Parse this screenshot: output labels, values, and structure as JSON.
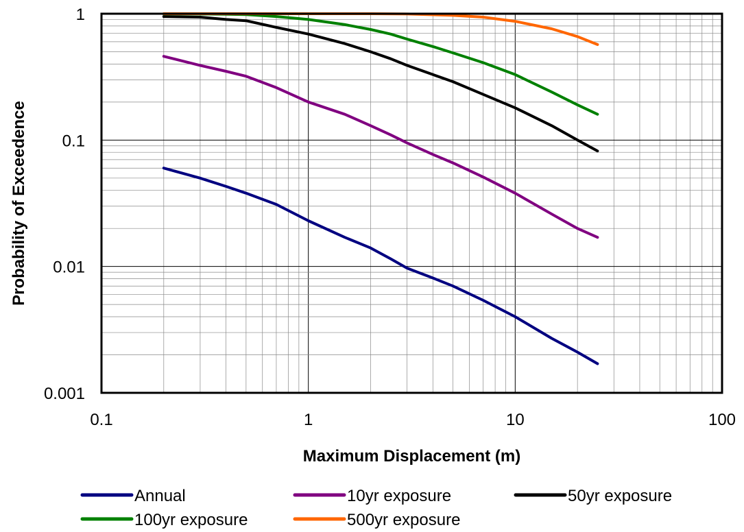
{
  "chart_data": {
    "type": "line",
    "title": "",
    "xlabel": "Maximum Displacement (m)",
    "ylabel": "Probability of Exceedence",
    "xscale": "log",
    "yscale": "log",
    "xlim": [
      0.1,
      100
    ],
    "ylim": [
      0.001,
      1
    ],
    "x_ticks": [
      "0.1",
      "1",
      "10",
      "100"
    ],
    "y_ticks": [
      "1",
      "0.1",
      "0.01",
      "0.001"
    ],
    "grid": true,
    "legend_position": "bottom",
    "series": [
      {
        "name": "Annual",
        "color": "#000080",
        "x": [
          0.2,
          0.3,
          0.4,
          0.5,
          0.7,
          1,
          1.5,
          2,
          2.5,
          3,
          4,
          5,
          7,
          10,
          15,
          20,
          25
        ],
        "y": [
          0.06,
          0.05,
          0.043,
          0.038,
          0.031,
          0.023,
          0.017,
          0.014,
          0.0115,
          0.0097,
          0.0081,
          0.007,
          0.0054,
          0.004,
          0.0027,
          0.0021,
          0.0017
        ]
      },
      {
        "name": "10yr exposure",
        "color": "#800080",
        "x": [
          0.2,
          0.3,
          0.4,
          0.5,
          0.7,
          1,
          1.5,
          2,
          2.5,
          3,
          4,
          5,
          7,
          10,
          15,
          20,
          25
        ],
        "y": [
          0.46,
          0.39,
          0.35,
          0.32,
          0.26,
          0.2,
          0.16,
          0.13,
          0.11,
          0.095,
          0.077,
          0.066,
          0.051,
          0.038,
          0.026,
          0.02,
          0.017
        ]
      },
      {
        "name": "50yr exposure",
        "color": "#000000",
        "x": [
          0.2,
          0.3,
          0.4,
          0.5,
          0.7,
          1,
          1.5,
          2,
          2.5,
          3,
          4,
          5,
          7,
          10,
          15,
          20,
          25
        ],
        "y": [
          0.95,
          0.94,
          0.9,
          0.88,
          0.78,
          0.69,
          0.58,
          0.5,
          0.44,
          0.39,
          0.33,
          0.29,
          0.23,
          0.18,
          0.13,
          0.1,
          0.082
        ]
      },
      {
        "name": "100yr exposure",
        "color": "#008000",
        "x": [
          0.2,
          0.3,
          0.4,
          0.5,
          0.7,
          1,
          1.5,
          2,
          2.5,
          3,
          4,
          5,
          7,
          10,
          15,
          20,
          25
        ],
        "y": [
          0.998,
          0.995,
          0.99,
          0.985,
          0.95,
          0.9,
          0.82,
          0.75,
          0.69,
          0.63,
          0.55,
          0.49,
          0.41,
          0.33,
          0.24,
          0.19,
          0.16
        ]
      },
      {
        "name": "500yr exposure",
        "color": "#FF6600",
        "x": [
          0.2,
          0.5,
          1,
          2,
          3,
          5,
          7,
          10,
          15,
          20,
          25
        ],
        "y": [
          1.0,
          1.0,
          1.0,
          1.0,
          0.995,
          0.97,
          0.94,
          0.87,
          0.76,
          0.66,
          0.57
        ]
      }
    ]
  }
}
